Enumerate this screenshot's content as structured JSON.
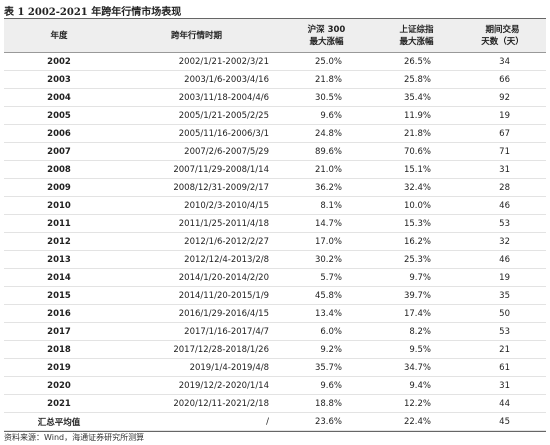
{
  "title": "表 1 2002-2021 年跨年行情市场表现",
  "table": {
    "headers": [
      [
        "年度"
      ],
      [
        "跨年行情时期"
      ],
      [
        "沪深 300",
        "最大涨幅"
      ],
      [
        "上证综指",
        "最大涨幅"
      ],
      [
        "期间交易",
        "天数（天）"
      ]
    ],
    "rows": [
      [
        "2002",
        "2002/1/21-2002/3/21",
        "25.0%",
        "26.5%",
        "34"
      ],
      [
        "2003",
        "2003/1/6-2003/4/16",
        "21.8%",
        "25.8%",
        "66"
      ],
      [
        "2004",
        "2003/11/18-2004/4/6",
        "30.5%",
        "35.4%",
        "92"
      ],
      [
        "2005",
        "2005/1/21-2005/2/25",
        "9.6%",
        "11.9%",
        "19"
      ],
      [
        "2006",
        "2005/11/16-2006/3/1",
        "24.8%",
        "21.8%",
        "67"
      ],
      [
        "2007",
        "2007/2/6-2007/5/29",
        "89.6%",
        "70.6%",
        "71"
      ],
      [
        "2008",
        "2007/11/29-2008/1/14",
        "21.0%",
        "15.1%",
        "31"
      ],
      [
        "2009",
        "2008/12/31-2009/2/17",
        "36.2%",
        "32.4%",
        "28"
      ],
      [
        "2010",
        "2010/2/3-2010/4/15",
        "8.1%",
        "10.0%",
        "46"
      ],
      [
        "2011",
        "2011/1/25-2011/4/18",
        "14.7%",
        "15.3%",
        "53"
      ],
      [
        "2012",
        "2012/1/6-2012/2/27",
        "17.0%",
        "16.2%",
        "32"
      ],
      [
        "2013",
        "2012/12/4-2013/2/8",
        "30.2%",
        "25.3%",
        "46"
      ],
      [
        "2014",
        "2014/1/20-2014/2/20",
        "5.7%",
        "9.7%",
        "19"
      ],
      [
        "2015",
        "2014/11/20-2015/1/9",
        "45.8%",
        "39.7%",
        "35"
      ],
      [
        "2016",
        "2016/1/29-2016/4/15",
        "13.4%",
        "17.4%",
        "50"
      ],
      [
        "2017",
        "2017/1/16-2017/4/7",
        "6.0%",
        "8.2%",
        "53"
      ],
      [
        "2018",
        "2017/12/28-2018/1/26",
        "9.2%",
        "9.5%",
        "21"
      ],
      [
        "2019",
        "2019/1/4-2019/4/8",
        "35.7%",
        "34.7%",
        "61"
      ],
      [
        "2020",
        "2019/12/2-2020/1/14",
        "9.6%",
        "9.4%",
        "31"
      ],
      [
        "2021",
        "2020/12/11-2021/2/18",
        "18.8%",
        "12.2%",
        "44"
      ],
      [
        "汇总平均值",
        "/",
        "23.6%",
        "22.4%",
        "45"
      ]
    ]
  },
  "source": "资料来源：Wind，海通证券研究所测算"
}
